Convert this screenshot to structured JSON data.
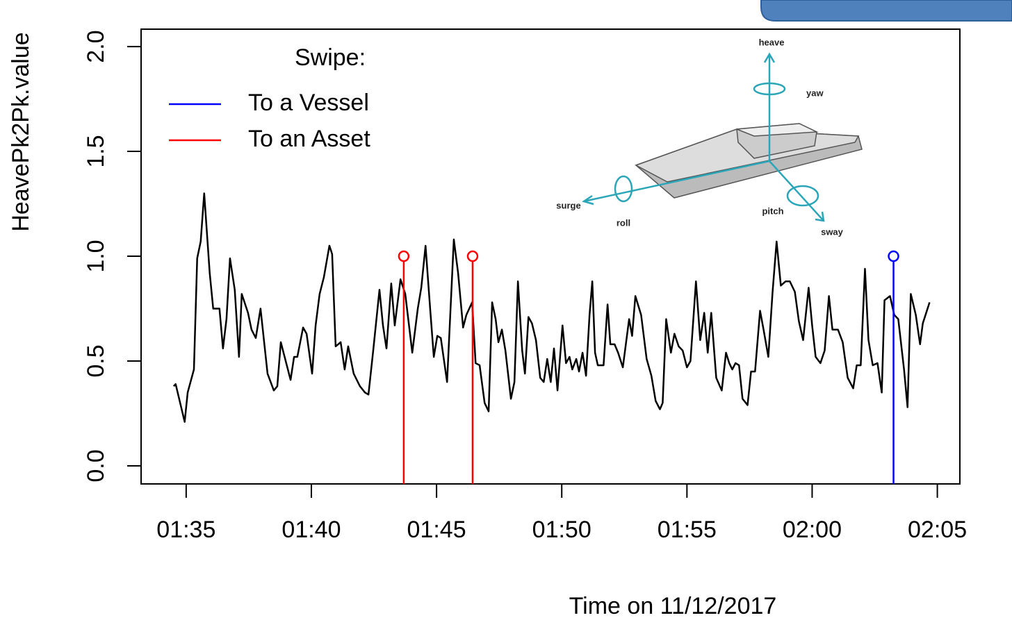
{
  "chart_data": {
    "type": "line",
    "xlabel": "Time on 11/12/2017",
    "ylabel": "HeavePk2Pk.value",
    "legend_title": "Swipe:",
    "legend": "top-left",
    "xlim": [
      93.2,
      125.9
    ],
    "ylim": [
      -0.086,
      2.083
    ],
    "xticks": [
      {
        "value": 95,
        "label": "01:35"
      },
      {
        "value": 100,
        "label": "01:40"
      },
      {
        "value": 105,
        "label": "01:45"
      },
      {
        "value": 110,
        "label": "01:50"
      },
      {
        "value": 115,
        "label": "01:55"
      },
      {
        "value": 120,
        "label": "02:00"
      },
      {
        "value": 125,
        "label": "02:05"
      }
    ],
    "yticks": [
      {
        "value": 0,
        "label": "0.0"
      },
      {
        "value": 0.5,
        "label": "0.5"
      },
      {
        "value": 1,
        "label": "1.0"
      },
      {
        "value": 1.5,
        "label": "1.5"
      },
      {
        "value": 2,
        "label": "2.0"
      }
    ],
    "inset_labels": [
      "heave",
      "yaw",
      "surge",
      "roll",
      "pitch",
      "sway"
    ],
    "series": [
      {
        "color": "#000000",
        "style": "line",
        "x": [
          94.5,
          94.58,
          94.94,
          95.06,
          95.31,
          95.44,
          95.58,
          95.72,
          95.94,
          96.08,
          96.33,
          96.47,
          96.61,
          96.75,
          96.94,
          97.11,
          97.22,
          97.47,
          97.61,
          97.78,
          97.97,
          98.25,
          98.5,
          98.64,
          98.78,
          99.17,
          99.31,
          99.44,
          99.67,
          99.81,
          100.03,
          100.17,
          100.33,
          100.5,
          100.72,
          100.83,
          100.97,
          101.17,
          101.33,
          101.47,
          101.69,
          101.94,
          102.14,
          102.28,
          102.47,
          102.72,
          102.86,
          103,
          103.19,
          103.33,
          103.56,
          103.75,
          104.03,
          104.25,
          104.39,
          104.56,
          104.75,
          104.89,
          105.03,
          105.17,
          105.42,
          105.69,
          105.86,
          106.06,
          106.19,
          106.42,
          106.56,
          106.72,
          106.92,
          107.08,
          107.22,
          107.36,
          107.47,
          107.61,
          107.75,
          107.97,
          108.11,
          108.25,
          108.42,
          108.53,
          108.67,
          108.81,
          108.97,
          109.14,
          109.28,
          109.42,
          109.56,
          109.69,
          109.83,
          110.03,
          110.17,
          110.31,
          110.42,
          110.58,
          110.69,
          110.83,
          110.97,
          111.11,
          111.22,
          111.33,
          111.44,
          111.67,
          111.83,
          111.94,
          112.11,
          112.25,
          112.44,
          112.69,
          112.81,
          112.94,
          113.17,
          113.39,
          113.58,
          113.75,
          113.92,
          114.03,
          114.17,
          114.36,
          114.5,
          114.67,
          114.83,
          115,
          115.14,
          115.36,
          115.53,
          115.69,
          115.83,
          115.97,
          116.17,
          116.39,
          116.56,
          116.69,
          116.81,
          116.94,
          117.08,
          117.22,
          117.42,
          117.56,
          117.72,
          117.92,
          118.06,
          118.25,
          118.42,
          118.58,
          118.75,
          118.94,
          119.11,
          119.31,
          119.47,
          119.64,
          119.86,
          120,
          120.14,
          120.33,
          120.5,
          120.67,
          120.81,
          121.03,
          121.22,
          121.42,
          121.64,
          121.78,
          121.94,
          122.11,
          122.25,
          122.42,
          122.61,
          122.78,
          122.89,
          123.11,
          123.28,
          123.44,
          123.67,
          123.81,
          123.94,
          124.14,
          124.31,
          124.42,
          124.69
        ],
        "values": [
          0.38,
          0.39,
          0.21,
          0.35,
          0.46,
          0.99,
          1.07,
          1.3,
          0.92,
          0.75,
          0.75,
          0.56,
          0.7,
          0.99,
          0.84,
          0.52,
          0.82,
          0.73,
          0.65,
          0.61,
          0.75,
          0.44,
          0.36,
          0.38,
          0.59,
          0.41,
          0.52,
          0.52,
          0.66,
          0.63,
          0.44,
          0.67,
          0.82,
          0.9,
          1.05,
          1.01,
          0.57,
          0.59,
          0.46,
          0.57,
          0.44,
          0.38,
          0.35,
          0.34,
          0.55,
          0.84,
          0.67,
          0.56,
          0.87,
          0.67,
          0.89,
          0.82,
          0.54,
          0.75,
          0.85,
          1.05,
          0.74,
          0.52,
          0.62,
          0.61,
          0.4,
          1.08,
          0.92,
          0.66,
          0.72,
          0.78,
          0.49,
          0.48,
          0.3,
          0.26,
          0.78,
          0.7,
          0.59,
          0.65,
          0.55,
          0.32,
          0.4,
          0.88,
          0.55,
          0.44,
          0.71,
          0.68,
          0.6,
          0.42,
          0.4,
          0.51,
          0.4,
          0.56,
          0.36,
          0.67,
          0.49,
          0.52,
          0.46,
          0.51,
          0.45,
          0.54,
          0.43,
          0.72,
          0.88,
          0.54,
          0.48,
          0.48,
          0.77,
          0.58,
          0.58,
          0.54,
          0.47,
          0.7,
          0.62,
          0.81,
          0.72,
          0.51,
          0.43,
          0.31,
          0.27,
          0.3,
          0.7,
          0.54,
          0.63,
          0.57,
          0.55,
          0.47,
          0.5,
          0.88,
          0.6,
          0.73,
          0.54,
          0.73,
          0.42,
          0.36,
          0.54,
          0.49,
          0.46,
          0.49,
          0.48,
          0.32,
          0.29,
          0.45,
          0.45,
          0.74,
          0.65,
          0.52,
          0.83,
          1.07,
          0.86,
          0.88,
          0.88,
          0.83,
          0.69,
          0.6,
          0.85,
          0.67,
          0.52,
          0.49,
          0.55,
          0.81,
          0.65,
          0.65,
          0.59,
          0.42,
          0.37,
          0.48,
          0.48,
          0.94,
          0.6,
          0.48,
          0.49,
          0.35,
          0.79,
          0.81,
          0.72,
          0.7,
          0.46,
          0.28,
          0.82,
          0.72,
          0.58,
          0.68,
          0.78
        ]
      },
      {
        "name": "To a Vessel",
        "color": "#0000ff",
        "style": "h",
        "x": [
          123.25
        ],
        "values": [
          1
        ]
      },
      {
        "name": "To an Asset",
        "color": "#ff0000",
        "style": "h",
        "x": [
          103.69,
          106.44
        ],
        "values": [
          1,
          1
        ]
      }
    ]
  }
}
